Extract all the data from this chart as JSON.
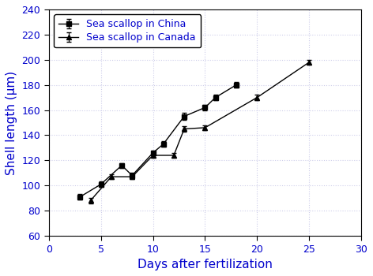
{
  "china_x": [
    3,
    5,
    7,
    8,
    10,
    11,
    13,
    15,
    16,
    18
  ],
  "china_y": [
    91,
    101,
    116,
    108,
    126,
    133,
    155,
    162,
    170,
    180
  ],
  "china_yerr": [
    2,
    2,
    2,
    2,
    2,
    2,
    3,
    2,
    2,
    2
  ],
  "canada_x": [
    4,
    6,
    8,
    10,
    12,
    13,
    15,
    20,
    25
  ],
  "canada_y": [
    88,
    107,
    107,
    124,
    124,
    145,
    146,
    170,
    198
  ],
  "canada_yerr": [
    2,
    2,
    2,
    2,
    2,
    2,
    2,
    2,
    2
  ],
  "xlabel": "Days after fertilization",
  "ylabel": "Shell length (μm)",
  "legend_china": "Sea scallop in China",
  "legend_canada": "Sea scallop in Canada",
  "xlim": [
    0,
    30
  ],
  "ylim": [
    60,
    240
  ],
  "xticks": [
    0,
    5,
    10,
    15,
    20,
    25,
    30
  ],
  "yticks": [
    60,
    80,
    100,
    120,
    140,
    160,
    180,
    200,
    220,
    240
  ],
  "line_color": "#000000",
  "marker_color": "#000000",
  "tick_color": "#0000cc",
  "label_color": "#0000cc",
  "spine_color": "#000000",
  "grid_color": "#c8c8e8",
  "figsize": [
    4.72,
    3.5
  ],
  "dpi": 100
}
